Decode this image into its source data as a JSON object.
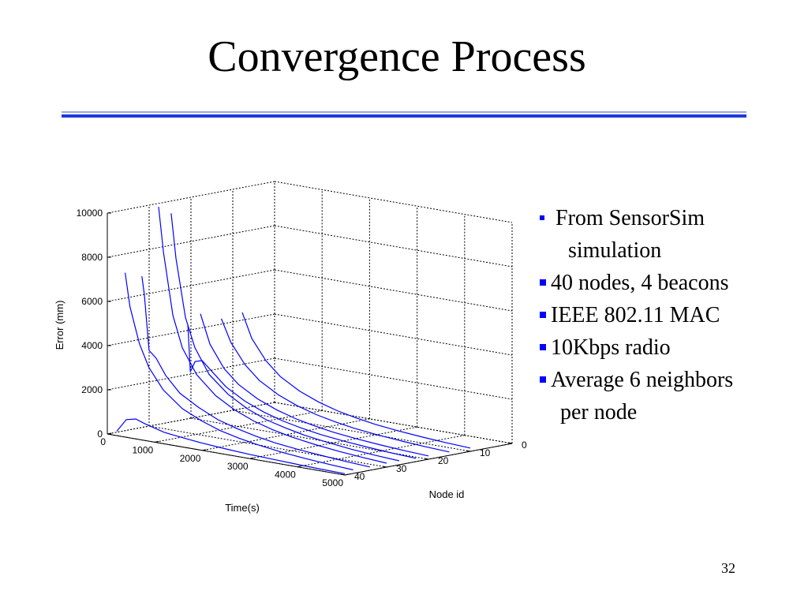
{
  "slide": {
    "title": "Convergence Process",
    "page_number": "32",
    "colors": {
      "rule": "#1e3adb",
      "rule_light": "#9aa6e0",
      "bullet": "#0000ff",
      "curve": "#0000ff"
    }
  },
  "bullets": [
    {
      "line1": "From SensorSim",
      "line2": "simulation"
    },
    {
      "line1": "40 nodes, 4 beacons"
    },
    {
      "line1": "IEEE 802.11 MAC"
    },
    {
      "line1": "10Kbps radio"
    },
    {
      "line1": "Average 6 neighbors",
      "line2": "per node"
    }
  ],
  "chart_data": {
    "type": "line",
    "projection": "3d",
    "grid": true,
    "xlabel": "Time(s)",
    "ylabel": "Node id",
    "zlabel": "Error (mm)",
    "xlim": [
      0,
      5000
    ],
    "ylim": [
      0,
      40
    ],
    "zlim": [
      0,
      10000
    ],
    "xticks": [
      "0",
      "1000",
      "2000",
      "3000",
      "4000",
      "5000"
    ],
    "yticks": [
      "0",
      "10",
      "20",
      "30",
      "40"
    ],
    "zticks": [
      "0",
      "2000",
      "4000",
      "6000",
      "8000",
      "10000"
    ],
    "series": [
      {
        "node": 40,
        "x": [
          200,
          400,
          600,
          800,
          1200,
          1600,
          2000,
          2500,
          3000,
          3500,
          4000,
          4500,
          5000
        ],
        "z": [
          200,
          800,
          900,
          750,
          520,
          420,
          330,
          250,
          190,
          150,
          110,
          80,
          60
        ]
      },
      {
        "node": 38,
        "x": [
          200,
          300,
          500,
          700,
          1000,
          1400,
          1800,
          2200,
          2600,
          3000,
          3500,
          4000,
          4500,
          5000
        ],
        "z": [
          7300,
          5800,
          4200,
          3200,
          2300,
          1600,
          1200,
          900,
          700,
          550,
          400,
          300,
          220,
          160
        ]
      },
      {
        "node": 34,
        "x": [
          200,
          250,
          350,
          500,
          700,
          1000,
          1400,
          1800,
          2200,
          2600,
          3000,
          3500,
          4000,
          4500,
          5000
        ],
        "z": [
          7000,
          6200,
          3700,
          3400,
          2700,
          2000,
          1500,
          1100,
          850,
          650,
          500,
          380,
          290,
          210,
          150
        ]
      },
      {
        "node": 30,
        "x": [
          200,
          300,
          500,
          700,
          1000,
          1400,
          1800,
          2200,
          2600,
          3000,
          3500,
          4000,
          4500,
          5000
        ],
        "z": [
          10000,
          8000,
          5200,
          3800,
          2700,
          1900,
          1400,
          1050,
          800,
          620,
          460,
          340,
          250,
          180
        ]
      },
      {
        "node": 27,
        "x": [
          200,
          300,
          500,
          700,
          1000,
          1400,
          1800,
          2200,
          2600,
          3000,
          3500,
          4000,
          4500,
          5000
        ],
        "z": [
          9600,
          7600,
          5000,
          3700,
          2600,
          1850,
          1350,
          1000,
          780,
          600,
          450,
          330,
          240,
          180
        ]
      },
      {
        "node": 23,
        "x": [
          200,
          250,
          350,
          500,
          700,
          1000,
          1400,
          1800,
          2200,
          2600,
          3000,
          3500,
          4000,
          4500,
          5000
        ],
        "z": [
          4400,
          2300,
          2800,
          2900,
          2500,
          1900,
          1400,
          1050,
          800,
          620,
          480,
          360,
          270,
          200,
          150
        ]
      },
      {
        "node": 20,
        "x": [
          200,
          400,
          700,
          1000,
          1400,
          1800,
          2200,
          2600,
          3000,
          3500,
          4000,
          4500,
          5000
        ],
        "z": [
          4800,
          3500,
          2500,
          1900,
          1400,
          1050,
          800,
          620,
          480,
          360,
          270,
          200,
          150
        ]
      },
      {
        "node": 15,
        "x": [
          200,
          400,
          700,
          1000,
          1400,
          1800,
          2200,
          2600,
          3000,
          3500,
          4000,
          4500,
          5000
        ],
        "z": [
          4400,
          3400,
          2500,
          1900,
          1400,
          1050,
          800,
          620,
          480,
          360,
          270,
          200,
          150
        ]
      },
      {
        "node": 10,
        "x": [
          200,
          400,
          700,
          1000,
          1400,
          1800,
          2200,
          2600,
          3000,
          3500,
          4000,
          4500,
          5000
        ],
        "z": [
          4500,
          3400,
          2500,
          1900,
          1400,
          1050,
          800,
          620,
          480,
          360,
          270,
          200,
          150
        ]
      }
    ]
  }
}
